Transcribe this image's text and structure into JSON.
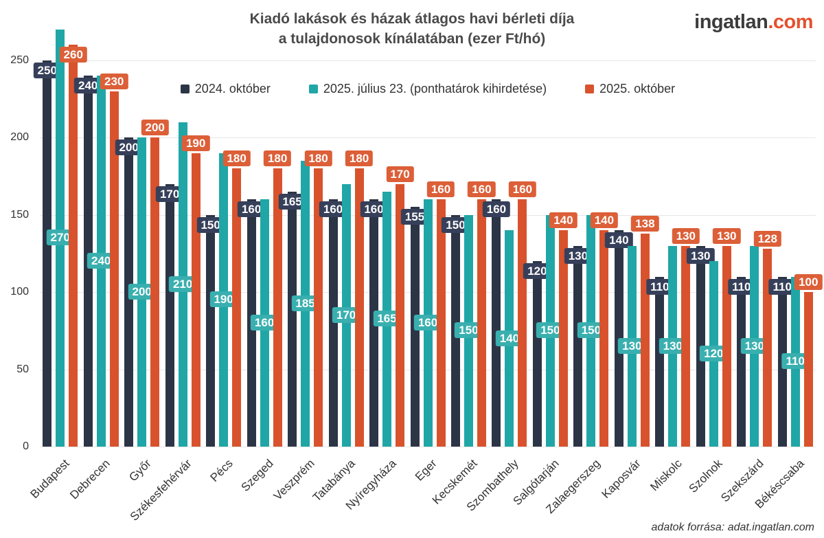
{
  "title": {
    "line1": "Kiadó lakások és házak átlagos havi bérleti díja",
    "line2": "a tulajdonosok kínálatában (ezer Ft/hó)"
  },
  "logo": {
    "text_main": "ingatlan",
    "text_accent": ".com",
    "accent_color": "#e4512e",
    "main_color": "#3c3c3c"
  },
  "footer": {
    "source_label": "adatok forrása: adat.ingatlan.com"
  },
  "chart_data": {
    "type": "bar",
    "title": "Kiadó lakások és házak átlagos havi bérleti díja a tulajdonosok kínálatában (ezer Ft/hó)",
    "xlabel": "",
    "ylabel": "",
    "ylim": [
      0,
      250
    ],
    "yticks": [
      0,
      50,
      100,
      150,
      200,
      250
    ],
    "grid": true,
    "legend_position": "top",
    "background_color": "#ffffff",
    "gridline_color": "#e6e6e6",
    "categories": [
      "Budapest",
      "Debrecen",
      "Győr",
      "Székesfehérvár",
      "Pécs",
      "Szeged",
      "Veszprém",
      "Tatabánya",
      "Nyíregyháza",
      "Eger",
      "Kecskemét",
      "Szombathely",
      "Salgótarján",
      "Zalaegerszeg",
      "Kaposvár",
      "Miskolc",
      "Szolnok",
      "Szekszárd",
      "Békéscsaba"
    ],
    "series": [
      {
        "name": "2024. október",
        "color": "#2c3546",
        "badge_color": "#37405a",
        "label_placement": "inside-top",
        "values": [
          250,
          240,
          200,
          170,
          150,
          160,
          165,
          160,
          160,
          155,
          150,
          160,
          120,
          130,
          140,
          110,
          130,
          110,
          110
        ]
      },
      {
        "name": "2025. július 23. (ponthatárok kihirdetése)",
        "color": "#20a6a6",
        "badge_color": "#3aafaf",
        "label_placement": "middle",
        "values": [
          270,
          240,
          200,
          210,
          190,
          160,
          185,
          170,
          165,
          160,
          150,
          140,
          150,
          150,
          130,
          130,
          120,
          130,
          110
        ]
      },
      {
        "name": "2025. október",
        "color": "#d8532d",
        "badge_color": "#dc5f38",
        "label_placement": "above-top",
        "values": [
          260,
          230,
          200,
          190,
          180,
          180,
          180,
          180,
          170,
          160,
          160,
          160,
          140,
          140,
          138,
          130,
          130,
          128,
          100
        ]
      }
    ]
  }
}
